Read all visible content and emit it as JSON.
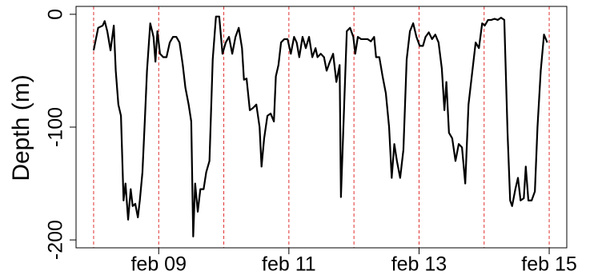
{
  "chart_data": {
    "type": "line",
    "y_label": "Depth (m)",
    "x": [
      8.0,
      8.07,
      8.14,
      8.17,
      8.21,
      8.26,
      8.31,
      8.34,
      8.38,
      8.42,
      8.46,
      8.49,
      8.53,
      8.57,
      8.6,
      8.64,
      8.68,
      8.71,
      8.75,
      8.79,
      8.82,
      8.87,
      8.92,
      8.95,
      8.98,
      9.02,
      9.07,
      9.12,
      9.17,
      9.22,
      9.27,
      9.32,
      9.37,
      9.41,
      9.46,
      9.5,
      9.53,
      9.56,
      9.6,
      9.64,
      9.69,
      9.73,
      9.78,
      9.83,
      9.88,
      9.93,
      9.98,
      10.03,
      10.08,
      10.13,
      10.18,
      10.23,
      10.28,
      10.31,
      10.35,
      10.4,
      10.45,
      10.5,
      10.55,
      10.58,
      10.62,
      10.67,
      10.72,
      10.77,
      10.8,
      10.84,
      10.88,
      10.93,
      10.98,
      11.03,
      11.08,
      11.12,
      11.16,
      11.21,
      11.26,
      11.31,
      11.36,
      11.41,
      11.44,
      11.49,
      11.54,
      11.58,
      11.63,
      11.68,
      11.73,
      11.78,
      11.8,
      11.85,
      11.89,
      11.94,
      11.99,
      12.02,
      12.06,
      12.11,
      12.16,
      12.21,
      12.26,
      12.31,
      12.34,
      12.39,
      12.44,
      12.49,
      12.54,
      12.58,
      12.62,
      12.66,
      12.71,
      12.76,
      12.81,
      12.86,
      12.91,
      12.96,
      13.01,
      13.06,
      13.1,
      13.15,
      13.2,
      13.25,
      13.3,
      13.35,
      13.39,
      13.42,
      13.46,
      13.51,
      13.56,
      13.61,
      13.66,
      13.71,
      13.76,
      13.81,
      13.87,
      13.92,
      13.97,
      14.01,
      14.06,
      14.11,
      14.16,
      14.21,
      14.26,
      14.31,
      14.36,
      14.4,
      14.43,
      14.48,
      14.52,
      14.56,
      14.61,
      14.64,
      14.68,
      14.73,
      14.78,
      14.82,
      14.87,
      14.92,
      14.97
    ],
    "values": [
      -32,
      -12,
      -10,
      -6,
      -15,
      -32,
      -10,
      -50,
      -80,
      -90,
      -165,
      -150,
      -182,
      -155,
      -170,
      -168,
      -180,
      -165,
      -140,
      -90,
      -50,
      -8,
      -20,
      -42,
      -15,
      -35,
      -38,
      -38,
      -25,
      -20,
      -20,
      -25,
      -45,
      -65,
      -80,
      -95,
      -197,
      -150,
      -175,
      -155,
      -155,
      -140,
      -130,
      -40,
      -2,
      -2,
      -35,
      -25,
      -20,
      -35,
      -20,
      -12,
      -30,
      -58,
      -57,
      -85,
      -83,
      -80,
      -100,
      -135,
      -110,
      -90,
      -88,
      -95,
      -55,
      -45,
      -25,
      -22,
      -22,
      -35,
      -20,
      -25,
      -38,
      -20,
      -30,
      -20,
      -38,
      -30,
      -38,
      -35,
      -38,
      -50,
      -42,
      -35,
      -60,
      -45,
      -162,
      -80,
      -15,
      -12,
      -20,
      -35,
      -20,
      -22,
      -22,
      -22,
      -24,
      -20,
      -38,
      -38,
      -55,
      -70,
      -100,
      -145,
      -115,
      -130,
      -145,
      -120,
      -40,
      -15,
      -8,
      -20,
      -28,
      -28,
      -20,
      -16,
      -22,
      -18,
      -25,
      -48,
      -85,
      -60,
      -105,
      -110,
      -130,
      -115,
      -118,
      -150,
      -80,
      -55,
      -25,
      -30,
      -8,
      -10,
      -5,
      -5,
      -4,
      -5,
      -3,
      -5,
      -105,
      -165,
      -170,
      -155,
      -145,
      -165,
      -163,
      -135,
      -165,
      -165,
      -157,
      -100,
      -50,
      -18,
      -25
    ],
    "color": "#000000",
    "xlim": [
      7.73,
      15.27
    ],
    "xticks": [
      {
        "value": 9,
        "label": "feb 09"
      },
      {
        "value": 11,
        "label": "feb 11"
      },
      {
        "value": 13,
        "label": "feb 13"
      },
      {
        "value": 15,
        "label": "feb 15"
      }
    ],
    "ylim": [
      -207,
      7
    ],
    "yticks": [
      -200,
      -100,
      0
    ],
    "vlines": [
      8,
      9,
      10,
      11,
      12,
      13,
      14,
      15
    ],
    "vline_color": "#e03030"
  }
}
